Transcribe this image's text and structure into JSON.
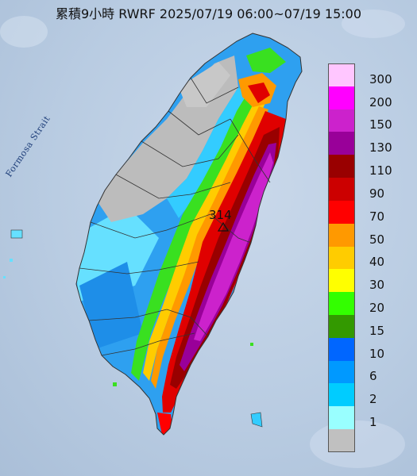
{
  "title": "累積9小時 RWRF 2025/07/19 06:00~07/19 15:00",
  "strait_label": "Formosa Strait",
  "peak_value": "314",
  "legend": [
    {
      "label": "300",
      "color": "#ffc6ff"
    },
    {
      "label": "200",
      "color": "#ff00ff"
    },
    {
      "label": "150",
      "color": "#cc22cc"
    },
    {
      "label": "130",
      "color": "#990099"
    },
    {
      "label": "110",
      "color": "#990000"
    },
    {
      "label": "90",
      "color": "#cc0000"
    },
    {
      "label": "70",
      "color": "#ff0000"
    },
    {
      "label": "50",
      "color": "#ff9900"
    },
    {
      "label": "40",
      "color": "#ffcc00"
    },
    {
      "label": "30",
      "color": "#ffff00"
    },
    {
      "label": "20",
      "color": "#33ff00"
    },
    {
      "label": "15",
      "color": "#339900"
    },
    {
      "label": "10",
      "color": "#0066ff"
    },
    {
      "label": "6",
      "color": "#0099ff"
    },
    {
      "label": "2",
      "color": "#00ccff"
    },
    {
      "label": "1",
      "color": "#99ffff"
    },
    {
      "label": "",
      "color": "#c0c0c0"
    }
  ]
}
